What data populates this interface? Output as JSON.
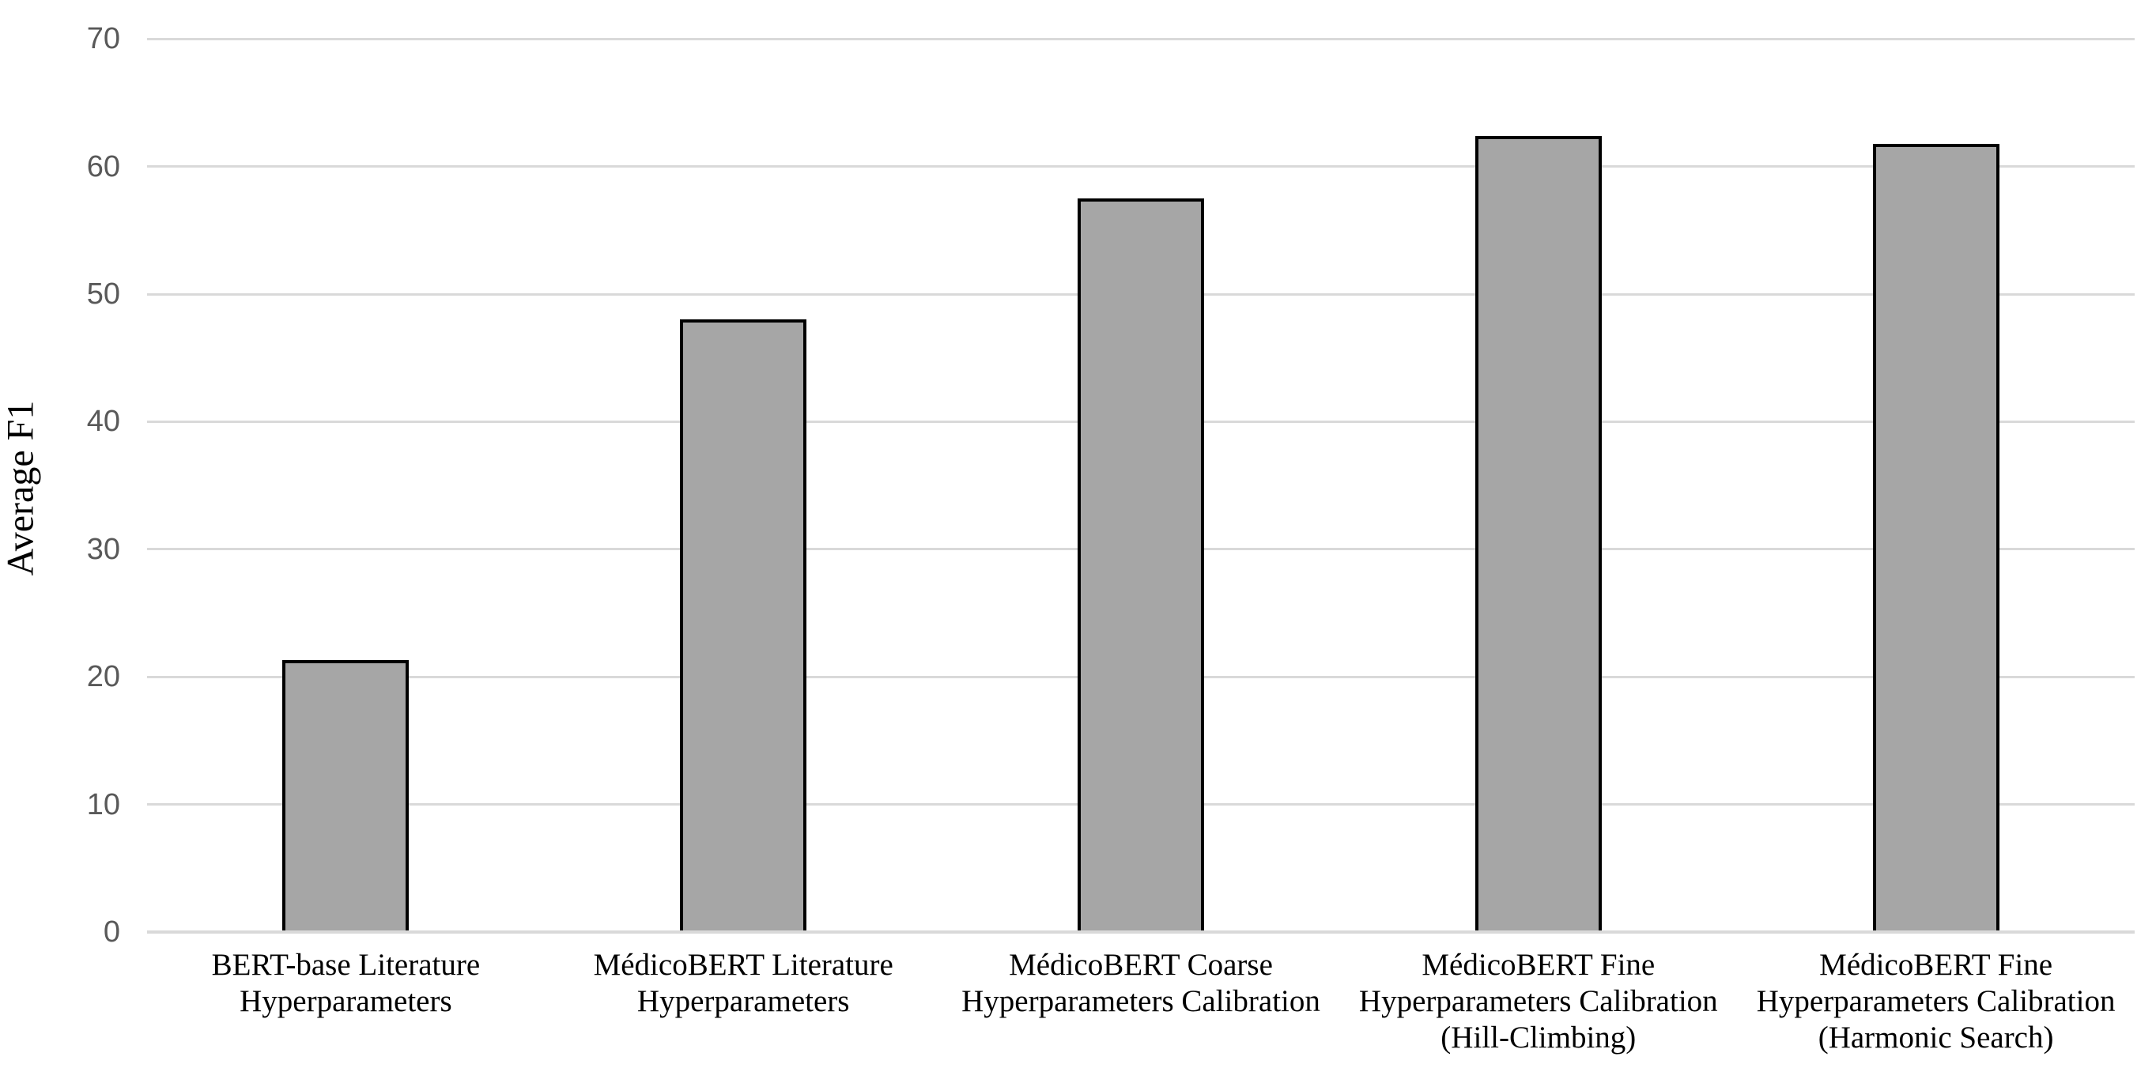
{
  "chart_data": {
    "type": "bar",
    "title": "",
    "xlabel": "",
    "ylabel": "Average F1",
    "ylim": [
      0,
      70
    ],
    "yticks": [
      0,
      10,
      20,
      30,
      40,
      50,
      60,
      70
    ],
    "grid": "horizontal gridlines on",
    "legend_position": "none",
    "categories": [
      "BERT-base Literature\nHyperparameters",
      "MédicoBERT Literature\nHyperparameters",
      "MédicoBERT Coarse\nHyperparameters Calibration",
      "MédicoBERT Fine\nHyperparameters Calibration\n(Hill-Climbing)",
      "MédicoBERT Fine\nHyperparameters Calibration\n(Harmonic Search)"
    ],
    "values": [
      21.3,
      48.0,
      57.5,
      62.4,
      61.8
    ],
    "colors": {
      "bar_fill": "#A6A6A6",
      "bar_border": "#000000",
      "gridline": "#D9D9D9",
      "tick_label": "#595959",
      "category_label": "#000000",
      "background": "#FFFFFF"
    }
  }
}
